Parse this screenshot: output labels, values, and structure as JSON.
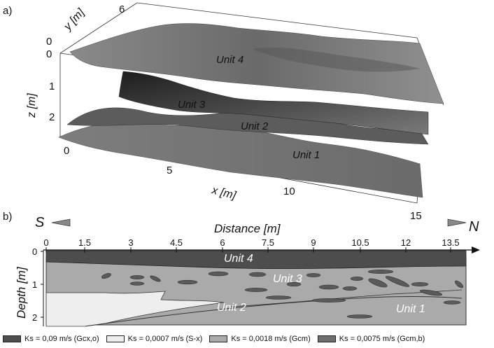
{
  "panel_a": {
    "label": "a)",
    "y_axis": {
      "label": "y [m]",
      "ticks": [
        "0",
        "6"
      ]
    },
    "z_axis": {
      "label": "z [m]",
      "ticks": [
        "0",
        "1",
        "2"
      ]
    },
    "x_axis": {
      "label": "x [m]",
      "ticks": [
        "0",
        "5",
        "10",
        "15"
      ]
    },
    "units": [
      "Unit 4",
      "Unit 3",
      "Unit 2",
      "Unit 1"
    ]
  },
  "panel_b": {
    "label": "b)",
    "left_dir": "S",
    "right_dir": "N",
    "distance_label": "Distance [m]",
    "distance_ticks": [
      "0",
      "1.5",
      "3",
      "4.5",
      "6",
      "7.5",
      "9",
      "10.5",
      "12",
      "13.5"
    ],
    "depth_label": "Depth [m]",
    "depth_ticks": [
      "0",
      "1",
      "2"
    ],
    "units": [
      "Unit 4",
      "Unit 3",
      "Unit 2",
      "Unit 1"
    ]
  },
  "legend": [
    {
      "text": "Ks = 0,09 m/s (Gcx,o)",
      "color": "#4d4d4d"
    },
    {
      "text": "Ks = 0,0007 m/s (S-x)",
      "color": "#eeeeee"
    },
    {
      "text": "Ks = 0,0018 m/s (Gcm)",
      "color": "#aaaaaa"
    },
    {
      "text": "Ks = 0,0075 m/s (Gcm,b)",
      "color": "#6e6e6e"
    }
  ]
}
